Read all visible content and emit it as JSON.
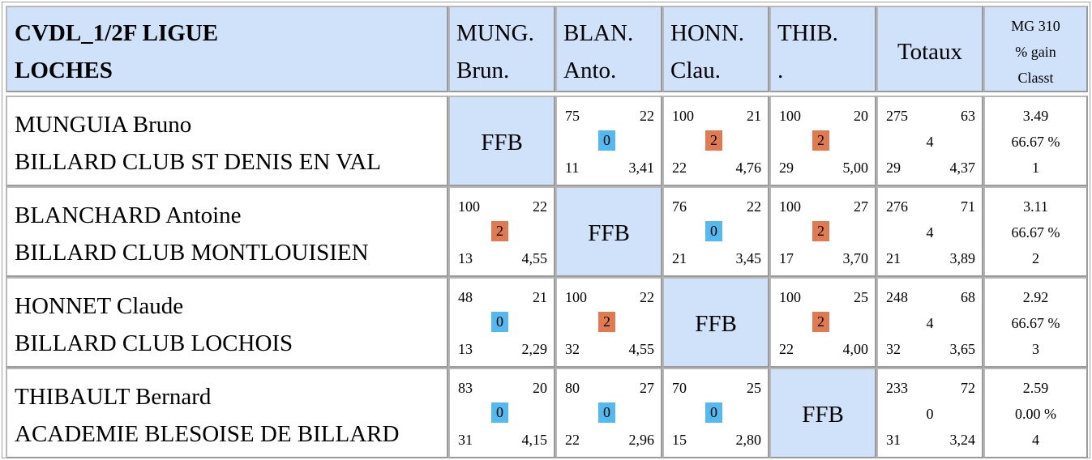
{
  "header": {
    "title_line1": "CVDL_1/2F LIGUE",
    "title_line2": "LOCHES",
    "columns": [
      {
        "line1": "MUNG.",
        "line2": "Brun."
      },
      {
        "line1": "BLAN.",
        "line2": "Anto."
      },
      {
        "line1": "HONN.",
        "line2": "Clau."
      },
      {
        "line1": "THIB.",
        "line2": "."
      }
    ],
    "totaux": "Totaux",
    "mg_line1": "MG 310",
    "mg_line2": "% gain",
    "mg_line3": "Classt"
  },
  "ffb_label": "FFB",
  "players": [
    {
      "name": "MUNGUIA Bruno",
      "club": "BILLARD CLUB ST DENIS EN VAL",
      "matches": [
        null,
        {
          "points": "75",
          "innings": "22",
          "match_points": "0",
          "result": "lose",
          "best_series": "11",
          "average": "3,41"
        },
        {
          "points": "100",
          "innings": "21",
          "match_points": "2",
          "result": "win",
          "best_series": "22",
          "average": "4,76"
        },
        {
          "points": "100",
          "innings": "20",
          "match_points": "2",
          "result": "win",
          "best_series": "29",
          "average": "5,00"
        }
      ],
      "totals": {
        "points": "275",
        "innings": "63",
        "match_points": "4",
        "best_series": "29",
        "average": "4,37"
      },
      "stats": {
        "mg": "3.49",
        "gain": "66.67 %",
        "rank": "1"
      }
    },
    {
      "name": "BLANCHARD Antoine",
      "club": "BILLARD CLUB MONTLOUISIEN",
      "matches": [
        {
          "points": "100",
          "innings": "22",
          "match_points": "2",
          "result": "win",
          "best_series": "13",
          "average": "4,55"
        },
        null,
        {
          "points": "76",
          "innings": "22",
          "match_points": "0",
          "result": "lose",
          "best_series": "21",
          "average": "3,45"
        },
        {
          "points": "100",
          "innings": "27",
          "match_points": "2",
          "result": "win",
          "best_series": "17",
          "average": "3,70"
        }
      ],
      "totals": {
        "points": "276",
        "innings": "71",
        "match_points": "4",
        "best_series": "21",
        "average": "3,89"
      },
      "stats": {
        "mg": "3.11",
        "gain": "66.67 %",
        "rank": "2"
      }
    },
    {
      "name": "HONNET Claude",
      "club": "BILLARD CLUB LOCHOIS",
      "matches": [
        {
          "points": "48",
          "innings": "21",
          "match_points": "0",
          "result": "lose",
          "best_series": "13",
          "average": "2,29"
        },
        {
          "points": "100",
          "innings": "22",
          "match_points": "2",
          "result": "win",
          "best_series": "32",
          "average": "4,55"
        },
        null,
        {
          "points": "100",
          "innings": "25",
          "match_points": "2",
          "result": "win",
          "best_series": "22",
          "average": "4,00"
        }
      ],
      "totals": {
        "points": "248",
        "innings": "68",
        "match_points": "4",
        "best_series": "32",
        "average": "3,65"
      },
      "stats": {
        "mg": "2.92",
        "gain": "66.67 %",
        "rank": "3"
      }
    },
    {
      "name": "THIBAULT Bernard",
      "club": "ACADEMIE BLESOISE DE BILLARD",
      "matches": [
        {
          "points": "83",
          "innings": "20",
          "match_points": "0",
          "result": "lose",
          "best_series": "31",
          "average": "4,15"
        },
        {
          "points": "80",
          "innings": "27",
          "match_points": "0",
          "result": "lose",
          "best_series": "22",
          "average": "2,96"
        },
        {
          "points": "70",
          "innings": "25",
          "match_points": "0",
          "result": "lose",
          "best_series": "15",
          "average": "2,80"
        },
        null
      ],
      "totals": {
        "points": "233",
        "innings": "72",
        "match_points": "0",
        "best_series": "31",
        "average": "3,24"
      },
      "stats": {
        "mg": "2.59",
        "gain": "0.00 %",
        "rank": "4"
      }
    }
  ],
  "colors": {
    "header_bg": "#cfe2fa",
    "win": "#e07a50",
    "lose": "#54b9ee"
  }
}
